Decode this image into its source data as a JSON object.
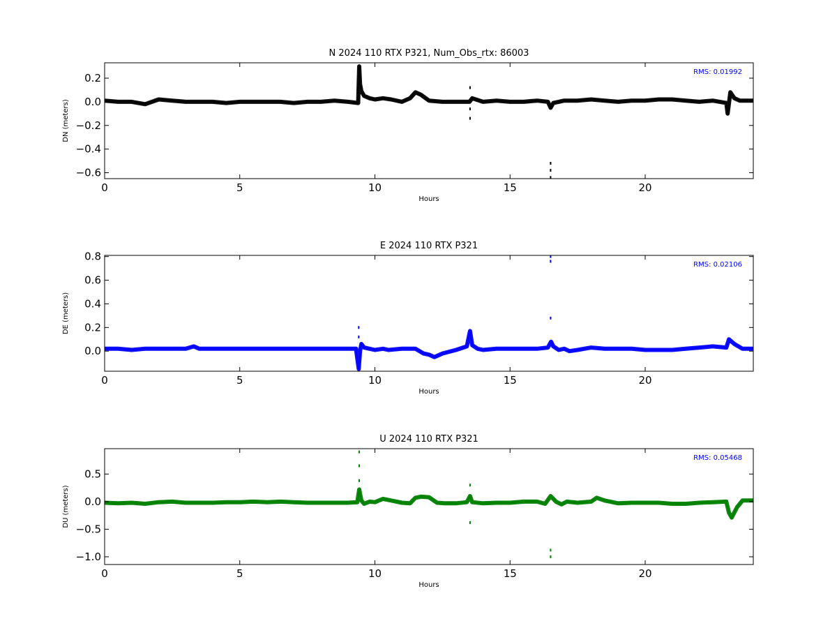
{
  "chart_data": [
    {
      "type": "line",
      "title": "N 2024 110 RTX  P321, Num_Obs_rtx: 86003",
      "xlabel": "Hours",
      "ylabel": "DN (meters)",
      "xlim": [
        0,
        24
      ],
      "ylim": [
        -0.65,
        0.33
      ],
      "xticks": [
        "0",
        "5",
        "10",
        "15",
        "20"
      ],
      "yticks": [
        {
          "value": 0.2,
          "label": "0.2"
        },
        {
          "value": 0.0,
          "label": "0.0"
        },
        {
          "value": -0.2,
          "label": "−0.2"
        },
        {
          "value": -0.4,
          "label": "−0.4"
        },
        {
          "value": -0.6,
          "label": "−0.6"
        }
      ],
      "annotation": "RMS:  0.01992",
      "color": "#000000",
      "annotation_color": "#0000ff",
      "series": [
        {
          "x": [
            0,
            0.5,
            1,
            1.5,
            2,
            2.5,
            3,
            3.5,
            4,
            4.5,
            5,
            5.5,
            6,
            6.5,
            7,
            7.5,
            8,
            8.5,
            9,
            9.38,
            9.42,
            9.45,
            9.5,
            9.6,
            9.8,
            10,
            10.3,
            10.6,
            11,
            11.3,
            11.5,
            11.7,
            12,
            12.5,
            13,
            13.5,
            13.6,
            14,
            14.5,
            15,
            15.5,
            16,
            16.4,
            16.5,
            16.6,
            16.8,
            17,
            17.5,
            18,
            18.5,
            19,
            19.5,
            20,
            20.5,
            21,
            21.5,
            22,
            22.5,
            23,
            23.05,
            23.15,
            23.3,
            23.5,
            24
          ],
          "y": [
            0.01,
            0.0,
            0.0,
            -0.02,
            0.02,
            0.01,
            0.0,
            0.0,
            0.0,
            -0.01,
            0.0,
            0.0,
            0.0,
            0.0,
            -0.01,
            0.0,
            0.0,
            0.01,
            0.0,
            -0.01,
            0.3,
            0.15,
            0.09,
            0.05,
            0.03,
            0.02,
            0.03,
            0.02,
            0.0,
            0.03,
            0.08,
            0.06,
            0.01,
            0.0,
            0.0,
            0.0,
            0.03,
            0.0,
            0.01,
            0.0,
            0.0,
            0.01,
            0.0,
            -0.05,
            -0.01,
            0.0,
            0.01,
            0.01,
            0.02,
            0.01,
            0.0,
            0.01,
            0.01,
            0.02,
            0.02,
            0.01,
            0.0,
            0.01,
            -0.01,
            -0.1,
            0.08,
            0.03,
            0.01,
            0.01
          ]
        },
        {
          "x": [
            13.52,
            13.52,
            13.52,
            16.5,
            16.5,
            16.5
          ],
          "y": [
            0.12,
            -0.06,
            -0.14,
            -0.52,
            -0.58,
            -0.64
          ]
        }
      ]
    },
    {
      "type": "line",
      "title": "E 2024 110 RTX  P321",
      "xlabel": "Hours",
      "ylabel": "DE (meters)",
      "xlim": [
        0,
        24
      ],
      "ylim": [
        -0.17,
        0.81
      ],
      "xticks": [
        "0",
        "5",
        "10",
        "15",
        "20"
      ],
      "yticks": [
        {
          "value": 0.8,
          "label": "0.8"
        },
        {
          "value": 0.6,
          "label": "0.6"
        },
        {
          "value": 0.4,
          "label": "0.4"
        },
        {
          "value": 0.2,
          "label": "0.2"
        },
        {
          "value": 0.0,
          "label": "0.0"
        }
      ],
      "annotation": "RMS:  0.02106",
      "color": "#0000ff",
      "annotation_color": "#0000ff",
      "series": [
        {
          "x": [
            0,
            0.5,
            1,
            1.5,
            2,
            2.5,
            3,
            3.3,
            3.5,
            4,
            4.5,
            5,
            5.5,
            6,
            6.5,
            7,
            7.5,
            8,
            8.5,
            9,
            9.3,
            9.4,
            9.45,
            9.5,
            9.6,
            9.8,
            10,
            10.3,
            10.5,
            11,
            11.5,
            11.8,
            12,
            12.2,
            12.5,
            13,
            13.4,
            13.52,
            13.6,
            13.8,
            14,
            14.5,
            15,
            15.5,
            16,
            16.4,
            16.52,
            16.6,
            16.8,
            17,
            17.2,
            17.5,
            18,
            18.5,
            19,
            19.5,
            20,
            20.5,
            21,
            21.5,
            22,
            22.5,
            23,
            23.1,
            23.3,
            23.6,
            24
          ],
          "y": [
            0.02,
            0.02,
            0.01,
            0.02,
            0.02,
            0.02,
            0.02,
            0.04,
            0.02,
            0.02,
            0.02,
            0.02,
            0.02,
            0.02,
            0.02,
            0.02,
            0.02,
            0.02,
            0.02,
            0.02,
            0.02,
            -0.15,
            0.0,
            0.06,
            0.03,
            0.02,
            0.01,
            0.02,
            0.01,
            0.02,
            0.02,
            -0.02,
            -0.03,
            -0.05,
            -0.02,
            0.01,
            0.04,
            0.17,
            0.05,
            0.02,
            0.01,
            0.02,
            0.02,
            0.02,
            0.02,
            0.03,
            0.08,
            0.04,
            0.01,
            0.02,
            0.0,
            0.01,
            0.03,
            0.02,
            0.02,
            0.02,
            0.01,
            0.01,
            0.01,
            0.02,
            0.03,
            0.04,
            0.03,
            0.1,
            0.06,
            0.02,
            0.02
          ]
        },
        {
          "x": [
            9.4,
            9.4,
            16.5,
            16.5,
            16.5
          ],
          "y": [
            0.2,
            0.12,
            0.28,
            0.76,
            0.8
          ]
        }
      ]
    },
    {
      "type": "line",
      "title": "U 2024 110 RTX  P321",
      "xlabel": "Hours",
      "ylabel": "DU (meters)",
      "xlim": [
        0,
        24
      ],
      "ylim": [
        -1.14,
        0.96
      ],
      "xticks": [
        "0",
        "5",
        "10",
        "15",
        "20"
      ],
      "yticks": [
        {
          "value": 0.5,
          "label": "0.5"
        },
        {
          "value": 0.0,
          "label": "0.0"
        },
        {
          "value": -0.5,
          "label": "−0.5"
        },
        {
          "value": -1.0,
          "label": "−1.0"
        }
      ],
      "annotation": "RMS:  0.05468",
      "color": "#008000",
      "annotation_color": "#0000ff",
      "series": [
        {
          "x": [
            0,
            0.5,
            1,
            1.5,
            2,
            2.5,
            3,
            3.5,
            4,
            4.5,
            5,
            5.5,
            6,
            6.5,
            7,
            7.5,
            8,
            8.5,
            9,
            9.35,
            9.42,
            9.5,
            9.6,
            9.8,
            10,
            10.3,
            10.6,
            11,
            11.3,
            11.5,
            11.7,
            12,
            12.3,
            12.6,
            13,
            13.4,
            13.52,
            13.6,
            14,
            14.5,
            15,
            15.5,
            16,
            16.3,
            16.5,
            16.7,
            16.9,
            17.1,
            17.5,
            18,
            18.2,
            18.5,
            19,
            19.5,
            20,
            20.5,
            21,
            21.5,
            22,
            22.5,
            23,
            23.1,
            23.2,
            23.4,
            23.6,
            24
          ],
          "y": [
            -0.02,
            -0.03,
            -0.02,
            -0.04,
            -0.01,
            0.0,
            -0.02,
            -0.02,
            -0.02,
            -0.01,
            -0.01,
            0.0,
            -0.01,
            0.0,
            -0.01,
            -0.02,
            -0.02,
            -0.02,
            -0.02,
            -0.01,
            0.22,
            0.02,
            -0.04,
            0.0,
            -0.01,
            0.05,
            0.02,
            -0.02,
            -0.03,
            0.07,
            0.09,
            0.08,
            -0.02,
            -0.03,
            -0.03,
            -0.01,
            0.1,
            -0.01,
            -0.03,
            -0.02,
            -0.02,
            0.0,
            0.0,
            -0.04,
            0.1,
            0.0,
            -0.05,
            0.0,
            -0.02,
            0.0,
            0.07,
            0.02,
            -0.03,
            -0.02,
            -0.02,
            -0.02,
            -0.04,
            -0.04,
            -0.02,
            -0.01,
            0.0,
            -0.2,
            -0.29,
            -0.1,
            0.02,
            0.02
          ]
        },
        {
          "x": [
            9.42,
            9.42,
            9.42,
            13.52,
            13.52,
            16.5,
            16.5
          ],
          "y": [
            0.9,
            0.65,
            0.38,
            0.3,
            -0.38,
            -0.88,
            -1.0
          ]
        }
      ]
    }
  ]
}
